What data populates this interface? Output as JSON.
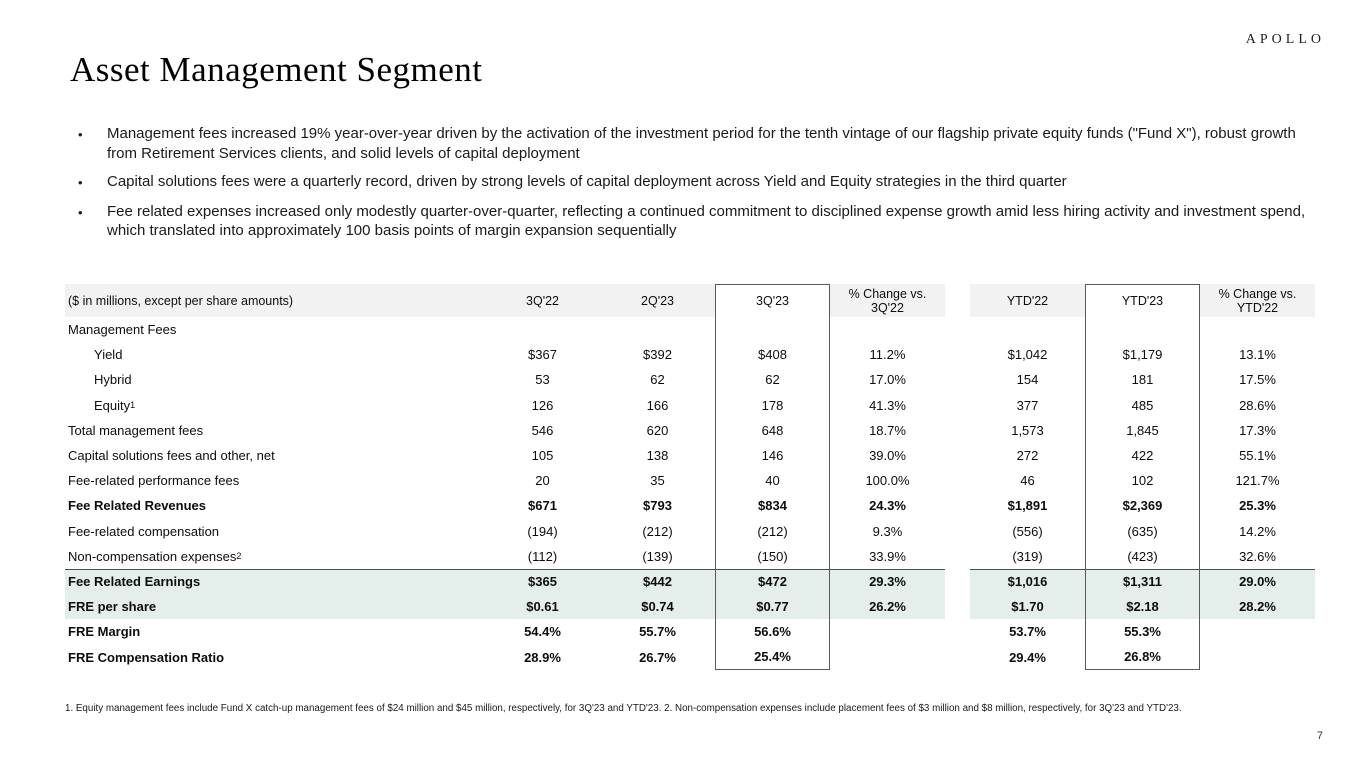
{
  "logo": "APOLLO",
  "title": "Asset Management Segment",
  "bullets": [
    "Management fees increased 19% year-over-year driven by the activation of the investment period for the tenth vintage of our flagship private equity funds (\"Fund X\"), robust growth from Retirement Services clients, and solid levels of capital deployment",
    "Capital solutions fees were a quarterly record, driven by strong levels of capital deployment across Yield and Equity strategies in the third quarter",
    "Fee related expenses increased only modestly quarter-over-quarter, reflecting a continued commitment to disciplined expense growth amid less hiring activity and investment spend, which translated into approximately 100 basis points of margin expansion sequentially"
  ],
  "table": {
    "caption": "($ in millions, except per share amounts)",
    "columns": [
      "3Q'22",
      "2Q'23",
      "3Q'23",
      "% Change vs.\n3Q'22",
      "YTD'22",
      "YTD'23",
      "% Change vs.\nYTD'22"
    ],
    "rows": [
      {
        "label": "Management Fees",
        "values": [
          "",
          "",
          "",
          "",
          "",
          "",
          ""
        ]
      },
      {
        "label": "Yield",
        "indent": true,
        "values": [
          "$367",
          "$392",
          "$408",
          "11.2%",
          "$1,042",
          "$1,179",
          "13.1%"
        ]
      },
      {
        "label": "Hybrid",
        "indent": true,
        "values": [
          "53",
          "62",
          "62",
          "17.0%",
          "154",
          "181",
          "17.5%"
        ]
      },
      {
        "label": "Equity",
        "sup": "1",
        "indent": true,
        "values": [
          "126",
          "166",
          "178",
          "41.3%",
          "377",
          "485",
          "28.6%"
        ]
      },
      {
        "label": "Total management fees",
        "values": [
          "546",
          "620",
          "648",
          "18.7%",
          "1,573",
          "1,845",
          "17.3%"
        ]
      },
      {
        "label": "Capital solutions fees and other, net",
        "values": [
          "105",
          "138",
          "146",
          "39.0%",
          "272",
          "422",
          "55.1%"
        ]
      },
      {
        "label": "Fee-related performance fees",
        "values": [
          "20",
          "35",
          "40",
          "100.0%",
          "46",
          "102",
          "121.7%"
        ]
      },
      {
        "label": "Fee Related Revenues",
        "bold": true,
        "values": [
          "$671",
          "$793",
          "$834",
          "24.3%",
          "$1,891",
          "$2,369",
          "25.3%"
        ]
      },
      {
        "label": "Fee-related compensation",
        "values": [
          "(194)",
          "(212)",
          "(212)",
          "9.3%",
          "(556)",
          "(635)",
          "14.2%"
        ]
      },
      {
        "label": "Non-compensation expenses",
        "sup": "2",
        "values": [
          "(112)",
          "(139)",
          "(150)",
          "33.9%",
          "(319)",
          "(423)",
          "32.6%"
        ]
      },
      {
        "label": "Fee Related Earnings",
        "bold": true,
        "highlight": true,
        "topline": true,
        "values": [
          "$365",
          "$442",
          "$472",
          "29.3%",
          "$1,016",
          "$1,311",
          "29.0%"
        ]
      },
      {
        "label": "FRE per share",
        "bold": true,
        "highlight": true,
        "values": [
          "$0.61",
          "$0.74",
          "$0.77",
          "26.2%",
          "$1.70",
          "$2.18",
          "28.2%"
        ]
      },
      {
        "label": "FRE Margin",
        "bold": true,
        "values": [
          "54.4%",
          "55.7%",
          "56.6%",
          "",
          "53.7%",
          "55.3%",
          ""
        ]
      },
      {
        "label": "FRE Compensation Ratio",
        "bold": true,
        "values": [
          "28.9%",
          "26.7%",
          "25.4%",
          "",
          "29.4%",
          "26.8%",
          ""
        ]
      }
    ]
  },
  "footnote": "1. Equity management fees include Fund X catch-up management fees of $24 million and $45 million, respectively, for 3Q'23 and YTD'23. 2. Non-compensation expenses include placement fees of $3 million and $8 million, respectively, for 3Q'23 and YTD'23.",
  "page_number": "7",
  "colors": {
    "header_gray": "#f2f2f2",
    "highlight_green": "#e4efeb",
    "box_border": "#595959",
    "topline_color": "#4d4d4d"
  }
}
